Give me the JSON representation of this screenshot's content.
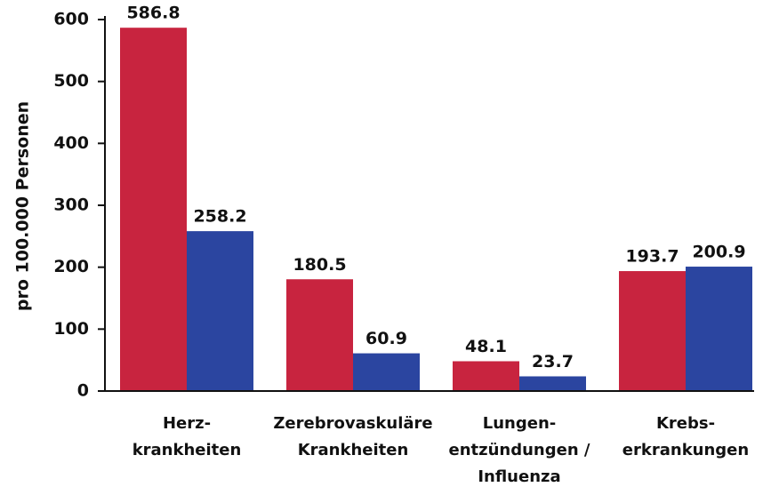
{
  "chart_data": {
    "type": "bar",
    "ylabel": "pro 100.000 Personen",
    "categories": [
      [
        "Herz-",
        "krankheiten"
      ],
      [
        "Zerebrovaskuläre",
        "Krankheiten"
      ],
      [
        "Lungen-",
        "entzündungen /",
        "Influenza"
      ],
      [
        "Krebs-",
        "erkrankungen"
      ]
    ],
    "series": [
      {
        "color": "#c8243f",
        "values": [
          586.8,
          180.5,
          48.1,
          193.7
        ]
      },
      {
        "color": "#2b45a0",
        "values": [
          258.2,
          60.9,
          23.7,
          200.9
        ]
      }
    ],
    "ylim": [
      0,
      600
    ],
    "yticks": [
      0,
      100,
      200,
      300,
      400,
      500,
      600
    ]
  }
}
